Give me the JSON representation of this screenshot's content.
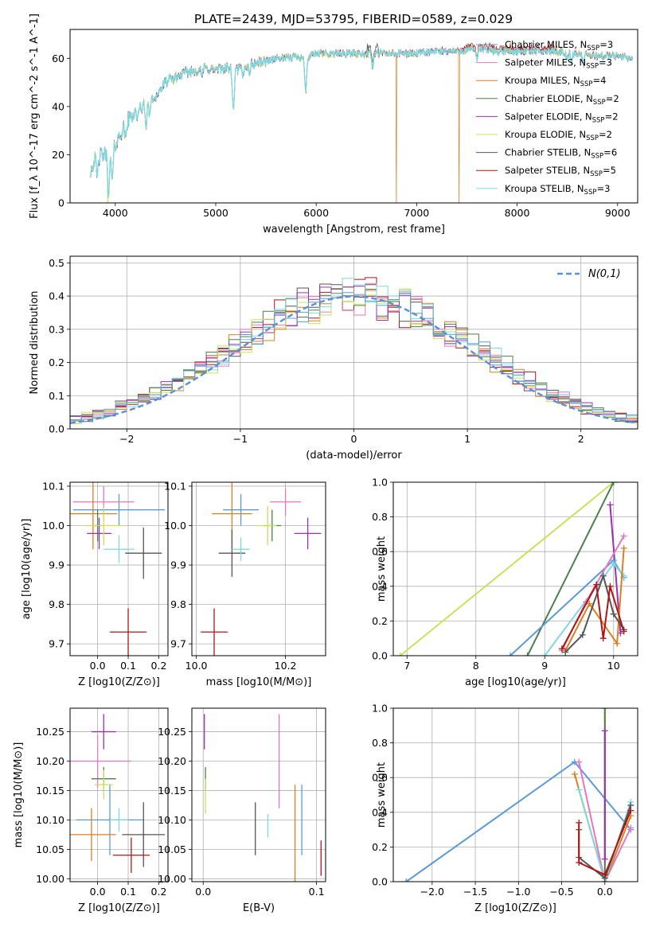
{
  "figure_title": "PLATE=2439, MJD=53795, FIBERID=0589, z=0.029",
  "colors": {
    "chabrier_miles": "#5b9bd5",
    "salpeter_miles": "#e377c2",
    "kroupa_miles": "#d98020",
    "chabrier_elodie": "#4d7f4d",
    "salpeter_elodie": "#9b30b0",
    "kroupa_elodie": "#cde05a",
    "chabrier_stelib": "#555555",
    "salpeter_stelib": "#b01515",
    "kroupa_stelib": "#7fd8de",
    "gauss": "#5b8fd6"
  },
  "models": [
    {
      "key": "chabrier_miles",
      "name": "Chabrier MILES",
      "nssp": "3"
    },
    {
      "key": "salpeter_miles",
      "name": "Salpeter MILES",
      "nssp": "3"
    },
    {
      "key": "kroupa_miles",
      "name": "Kroupa MILES",
      "nssp": "4"
    },
    {
      "key": "chabrier_elodie",
      "name": "Chabrier ELODIE",
      "nssp": "2"
    },
    {
      "key": "salpeter_elodie",
      "name": "Salpeter ELODIE",
      "nssp": "2"
    },
    {
      "key": "kroupa_elodie",
      "name": "Kroupa ELODIE",
      "nssp": "2"
    },
    {
      "key": "chabrier_stelib",
      "name": "Chabrier STELIB",
      "nssp": "6"
    },
    {
      "key": "salpeter_stelib",
      "name": "Salpeter STELIB",
      "nssp": "5"
    },
    {
      "key": "kroupa_stelib",
      "name": "Kroupa STELIB",
      "nssp": "3"
    }
  ],
  "chart_data": [
    {
      "id": "spectrum",
      "type": "line",
      "xlabel": "wavelength [Angstrom, rest frame]",
      "ylabel": "Flux [f_λ 10^-17 erg cm^-2 s^-1 A^-1]",
      "xlim": [
        3550,
        9200
      ],
      "ylim": [
        0,
        72
      ],
      "xticks": [
        4000,
        5000,
        6000,
        7000,
        8000,
        9000
      ],
      "yticks": [
        0,
        20,
        40,
        60
      ],
      "continuum": [
        [
          3750,
          13
        ],
        [
          3800,
          19
        ],
        [
          3900,
          20
        ],
        [
          4000,
          24
        ],
        [
          4100,
          33
        ],
        [
          4200,
          38
        ],
        [
          4300,
          41
        ],
        [
          4400,
          44
        ],
        [
          4500,
          50
        ],
        [
          4600,
          52
        ],
        [
          4700,
          54
        ],
        [
          4800,
          55
        ],
        [
          4900,
          56
        ],
        [
          5000,
          55
        ],
        [
          5100,
          56
        ],
        [
          5200,
          55
        ],
        [
          5300,
          57
        ],
        [
          5400,
          58
        ],
        [
          5500,
          59
        ],
        [
          5600,
          60
        ],
        [
          5700,
          60
        ],
        [
          5800,
          61
        ],
        [
          5900,
          60
        ],
        [
          6000,
          62
        ],
        [
          6200,
          62
        ],
        [
          6400,
          62
        ],
        [
          6600,
          62
        ],
        [
          6800,
          62
        ],
        [
          7000,
          62
        ],
        [
          7200,
          63
        ],
        [
          7400,
          63
        ],
        [
          7600,
          64
        ],
        [
          7800,
          63
        ],
        [
          8000,
          63
        ],
        [
          8200,
          63
        ],
        [
          8400,
          63
        ],
        [
          8600,
          62
        ],
        [
          8800,
          61
        ],
        [
          9000,
          61
        ],
        [
          9150,
          60
        ]
      ],
      "absorption_features": [
        [
          3820,
          9
        ],
        [
          3935,
          18
        ],
        [
          3970,
          14
        ],
        [
          4102,
          6
        ],
        [
          4227,
          4
        ],
        [
          4305,
          9
        ],
        [
          4340,
          5
        ],
        [
          4861,
          3
        ],
        [
          5175,
          18
        ],
        [
          5270,
          4
        ],
        [
          5335,
          3
        ],
        [
          5895,
          14
        ],
        [
          6563,
          6
        ],
        [
          7600,
          4
        ],
        [
          8498,
          3
        ],
        [
          8542,
          4
        ],
        [
          8662,
          4
        ]
      ],
      "dropouts": [
        {
          "model": "kroupa_elodie",
          "x": 3925
        },
        {
          "model": "kroupa_miles",
          "x": 6800
        },
        {
          "model": "kroupa_miles",
          "x": 7420
        }
      ]
    },
    {
      "id": "residuals",
      "type": "histogram",
      "xlabel": "(data-model)/error",
      "ylabel": "Normed distribution",
      "xlim": [
        -2.5,
        2.5
      ],
      "ylim": [
        0,
        0.52
      ],
      "xticks": [
        -2,
        -1,
        0,
        1,
        2
      ],
      "yticks": [
        0.0,
        0.1,
        0.2,
        0.3,
        0.4,
        0.5
      ],
      "bin_width": 0.1,
      "gauss_label": "N(0,1)"
    },
    {
      "id": "z_age",
      "type": "errorbar",
      "xlabel": "Z [log10(Z/Z⊙)]",
      "ylabel": "age [log10(age/yr)]",
      "xlim": [
        -0.09,
        0.23
      ],
      "ylim": [
        9.67,
        10.11
      ],
      "xticks": [
        0.0,
        0.1,
        0.2
      ],
      "yticks": [
        9.7,
        9.8,
        9.9,
        10.0,
        10.1
      ],
      "points": [
        {
          "model": "chabrier_miles",
          "x": 0.07,
          "xerr": 0.15,
          "y": 10.04,
          "yerr": 0.04
        },
        {
          "model": "salpeter_miles",
          "x": 0.02,
          "xerr": 0.1,
          "y": 10.06,
          "yerr": 0.04
        },
        {
          "model": "kroupa_miles",
          "x": -0.015,
          "xerr": 0.08,
          "y": 10.03,
          "yerr": 0.09
        },
        {
          "model": "chabrier_elodie",
          "x": 0.0,
          "xerr": 0.015,
          "y": 10.0,
          "yerr": 0.04
        },
        {
          "model": "salpeter_elodie",
          "x": 0.005,
          "xerr": 0.04,
          "y": 9.98,
          "yerr": 0.04
        },
        {
          "model": "kroupa_elodie",
          "x": 0.02,
          "xerr": 0.06,
          "y": 10.0,
          "yerr": 0.05
        },
        {
          "model": "chabrier_stelib",
          "x": 0.15,
          "xerr": 0.06,
          "y": 9.93,
          "yerr": 0.065
        },
        {
          "model": "salpeter_stelib",
          "x": 0.1,
          "xerr": 0.06,
          "y": 9.73,
          "yerr": 0.06
        },
        {
          "model": "kroupa_stelib",
          "x": 0.07,
          "xerr": 0.05,
          "y": 9.94,
          "yerr": 0.035
        }
      ]
    },
    {
      "id": "mass_age",
      "type": "errorbar",
      "xlabel": "mass [log10(M/M⊙)]",
      "ylabel": "",
      "xlim": [
        9.99,
        10.29
      ],
      "ylim": [
        9.67,
        10.11
      ],
      "xticks": [
        10.0,
        10.2
      ],
      "yticks": [
        9.7,
        9.8,
        9.9,
        10.0,
        10.1
      ],
      "points": [
        {
          "model": "chabrier_miles",
          "x": 10.1,
          "xerr": 0.04,
          "y": 10.04,
          "yerr": 0.04
        },
        {
          "model": "salpeter_miles",
          "x": 10.2,
          "xerr": 0.035,
          "y": 10.06,
          "yerr": 0.035
        },
        {
          "model": "kroupa_miles",
          "x": 10.08,
          "xerr": 0.045,
          "y": 10.03,
          "yerr": 0.09
        },
        {
          "model": "chabrier_elodie",
          "x": 10.17,
          "xerr": 0.02,
          "y": 10.0,
          "yerr": 0.04
        },
        {
          "model": "salpeter_elodie",
          "x": 10.25,
          "xerr": 0.03,
          "y": 9.98,
          "yerr": 0.04
        },
        {
          "model": "kroupa_elodie",
          "x": 10.16,
          "xerr": 0.02,
          "y": 10.0,
          "yerr": 0.05
        },
        {
          "model": "chabrier_stelib",
          "x": 10.08,
          "xerr": 0.03,
          "y": 9.93,
          "yerr": 0.06
        },
        {
          "model": "salpeter_stelib",
          "x": 10.04,
          "xerr": 0.03,
          "y": 9.73,
          "yerr": 0.06
        },
        {
          "model": "kroupa_stelib",
          "x": 10.1,
          "xerr": 0.02,
          "y": 9.94,
          "yerr": 0.03
        }
      ]
    },
    {
      "id": "age_weight",
      "type": "line",
      "xlabel": "age [log10(age/yr)]",
      "ylabel": "mass weight",
      "xlim": [
        6.8,
        10.35
      ],
      "ylim": [
        0,
        1
      ],
      "xticks": [
        7,
        8,
        9,
        10
      ],
      "yticks": [
        0.0,
        0.2,
        0.4,
        0.6,
        0.8,
        1.0
      ],
      "series": [
        {
          "model": "kroupa_elodie",
          "points": [
            [
              6.9,
              0.0
            ],
            [
              10.0,
              1.0
            ]
          ]
        },
        {
          "model": "chabrier_elodie",
          "points": [
            [
              8.75,
              0.0
            ],
            [
              10.0,
              1.0
            ]
          ]
        },
        {
          "model": "salpeter_elodie",
          "points": [
            [
              9.95,
              0.87
            ],
            [
              10.1,
              0.13
            ]
          ]
        },
        {
          "model": "chabrier_miles",
          "points": [
            [
              8.5,
              0.0
            ],
            [
              10.0,
              0.55
            ],
            [
              10.15,
              0.45
            ]
          ]
        },
        {
          "model": "kroupa_stelib",
          "points": [
            [
              9.0,
              0.0
            ],
            [
              10.0,
              0.53
            ],
            [
              10.15,
              0.46
            ]
          ]
        },
        {
          "model": "salpeter_miles",
          "points": [
            [
              9.25,
              0.03
            ],
            [
              9.6,
              0.31
            ],
            [
              10.15,
              0.69
            ]
          ]
        },
        {
          "model": "kroupa_miles",
          "points": [
            [
              9.3,
              0.03
            ],
            [
              9.65,
              0.3
            ],
            [
              10.05,
              0.07
            ],
            [
              10.15,
              0.62
            ]
          ]
        },
        {
          "model": "chabrier_stelib",
          "points": [
            [
              9.3,
              0.02
            ],
            [
              9.55,
              0.12
            ],
            [
              9.85,
              0.46
            ],
            [
              10.0,
              0.24
            ],
            [
              10.15,
              0.15
            ]
          ]
        },
        {
          "model": "salpeter_stelib",
          "points": [
            [
              9.25,
              0.04
            ],
            [
              9.75,
              0.41
            ],
            [
              9.85,
              0.1
            ],
            [
              9.95,
              0.4
            ],
            [
              10.15,
              0.14
            ]
          ]
        }
      ]
    },
    {
      "id": "z_mass",
      "type": "errorbar",
      "xlabel": "Z [log10(Z/Z⊙)]",
      "ylabel": "mass [log10(M/M⊙)]",
      "xlim": [
        -0.09,
        0.23
      ],
      "ylim": [
        9.995,
        10.29
      ],
      "xticks": [
        0.0,
        0.1,
        0.2
      ],
      "yticks": [
        10.0,
        10.05,
        10.1,
        10.15,
        10.2,
        10.25
      ],
      "points": [
        {
          "model": "chabrier_miles",
          "x": 0.04,
          "xerr": 0.11,
          "y": 10.1,
          "yerr": 0.06
        },
        {
          "model": "salpeter_miles",
          "x": 0.0,
          "xerr": 0.11,
          "y": 10.2,
          "yerr": 0.045
        },
        {
          "model": "kroupa_miles",
          "x": -0.02,
          "xerr": 0.08,
          "y": 10.075,
          "yerr": 0.045
        },
        {
          "model": "chabrier_elodie",
          "x": 0.02,
          "xerr": 0.04,
          "y": 10.17,
          "yerr": 0.02
        },
        {
          "model": "salpeter_elodie",
          "x": 0.02,
          "xerr": 0.04,
          "y": 10.25,
          "yerr": 0.03
        },
        {
          "model": "kroupa_elodie",
          "x": 0.02,
          "xerr": 0.03,
          "y": 10.16,
          "yerr": 0.025
        },
        {
          "model": "chabrier_stelib",
          "x": 0.15,
          "xerr": 0.07,
          "y": 10.075,
          "yerr": 0.055
        },
        {
          "model": "salpeter_stelib",
          "x": 0.11,
          "xerr": 0.06,
          "y": 10.04,
          "yerr": 0.03
        },
        {
          "model": "kroupa_stelib",
          "x": 0.07,
          "xerr": 0.03,
          "y": 10.1,
          "yerr": 0.02
        }
      ]
    },
    {
      "id": "ebv_mass",
      "type": "errorbar",
      "xlabel": "E(B-V)",
      "ylabel": "",
      "xlim": [
        -0.01,
        0.108
      ],
      "ylim": [
        9.995,
        10.29
      ],
      "xticks": [
        0.0,
        0.1
      ],
      "yticks": [
        10.0,
        10.05,
        10.1,
        10.15,
        10.2,
        10.25
      ],
      "points": [
        {
          "model": "chabrier_miles",
          "x": 0.087,
          "xerr": 0.0,
          "y": 10.1,
          "yerr": 0.06
        },
        {
          "model": "salpeter_miles",
          "x": 0.067,
          "xerr": 0.0,
          "y": 10.2,
          "yerr": 0.08
        },
        {
          "model": "kroupa_miles",
          "x": 0.081,
          "xerr": 0.0,
          "y": 10.075,
          "yerr": 0.085
        },
        {
          "model": "chabrier_elodie",
          "x": 0.002,
          "xerr": 0.0,
          "y": 10.17,
          "yerr": 0.02
        },
        {
          "model": "salpeter_elodie",
          "x": 0.001,
          "xerr": 0.0,
          "y": 10.25,
          "yerr": 0.03
        },
        {
          "model": "kroupa_elodie",
          "x": 0.002,
          "xerr": 0.0,
          "y": 10.14,
          "yerr": 0.03
        },
        {
          "model": "chabrier_stelib",
          "x": 0.046,
          "xerr": 0.0,
          "y": 10.085,
          "yerr": 0.045
        },
        {
          "model": "salpeter_stelib",
          "x": 0.104,
          "xerr": 0.0,
          "y": 10.035,
          "yerr": 0.03
        },
        {
          "model": "kroupa_stelib",
          "x": 0.057,
          "xerr": 0.0,
          "y": 10.09,
          "yerr": 0.02
        }
      ]
    },
    {
      "id": "z_weight",
      "type": "line",
      "xlabel": "Z [log10(Z/Z⊙)]",
      "ylabel": "mass weight",
      "xlim": [
        -2.45,
        0.38
      ],
      "ylim": [
        0,
        1
      ],
      "xticks": [
        -2.0,
        -1.5,
        -1.0,
        -0.5,
        0.0
      ],
      "yticks": [
        0.0,
        0.2,
        0.4,
        0.6,
        0.8,
        1.0
      ],
      "series": [
        {
          "model": "chabrier_miles",
          "points": [
            [
              -2.3,
              0.0
            ],
            [
              -0.35,
              0.69
            ],
            [
              0.3,
              0.3
            ]
          ]
        },
        {
          "model": "kroupa_elodie",
          "points": [
            [
              0.0,
              0.0
            ],
            [
              0.0,
              1.0
            ]
          ]
        },
        {
          "model": "chabrier_elodie",
          "points": [
            [
              0.0,
              0.0
            ],
            [
              0.0,
              1.0
            ]
          ]
        },
        {
          "model": "salpeter_elodie",
          "points": [
            [
              0.0,
              0.13
            ],
            [
              0.0,
              0.87
            ]
          ]
        },
        {
          "model": "salpeter_miles",
          "points": [
            [
              -0.3,
              0.69
            ],
            [
              0.0,
              0.0
            ],
            [
              0.3,
              0.31
            ]
          ]
        },
        {
          "model": "kroupa_miles",
          "points": [
            [
              -0.35,
              0.62
            ],
            [
              0.0,
              0.0
            ],
            [
              0.3,
              0.38
            ]
          ]
        },
        {
          "model": "kroupa_stelib",
          "points": [
            [
              -0.3,
              0.53
            ],
            [
              0.0,
              0.0
            ],
            [
              0.3,
              0.46
            ]
          ]
        },
        {
          "model": "chabrier_stelib",
          "points": [
            [
              -0.3,
              0.3
            ],
            [
              -0.3,
              0.14
            ],
            [
              0.0,
              0.02
            ],
            [
              0.3,
              0.44
            ]
          ]
        },
        {
          "model": "salpeter_stelib",
          "points": [
            [
              -0.3,
              0.34
            ],
            [
              -0.3,
              0.11
            ],
            [
              0.0,
              0.04
            ],
            [
              0.3,
              0.41
            ]
          ]
        }
      ]
    }
  ]
}
